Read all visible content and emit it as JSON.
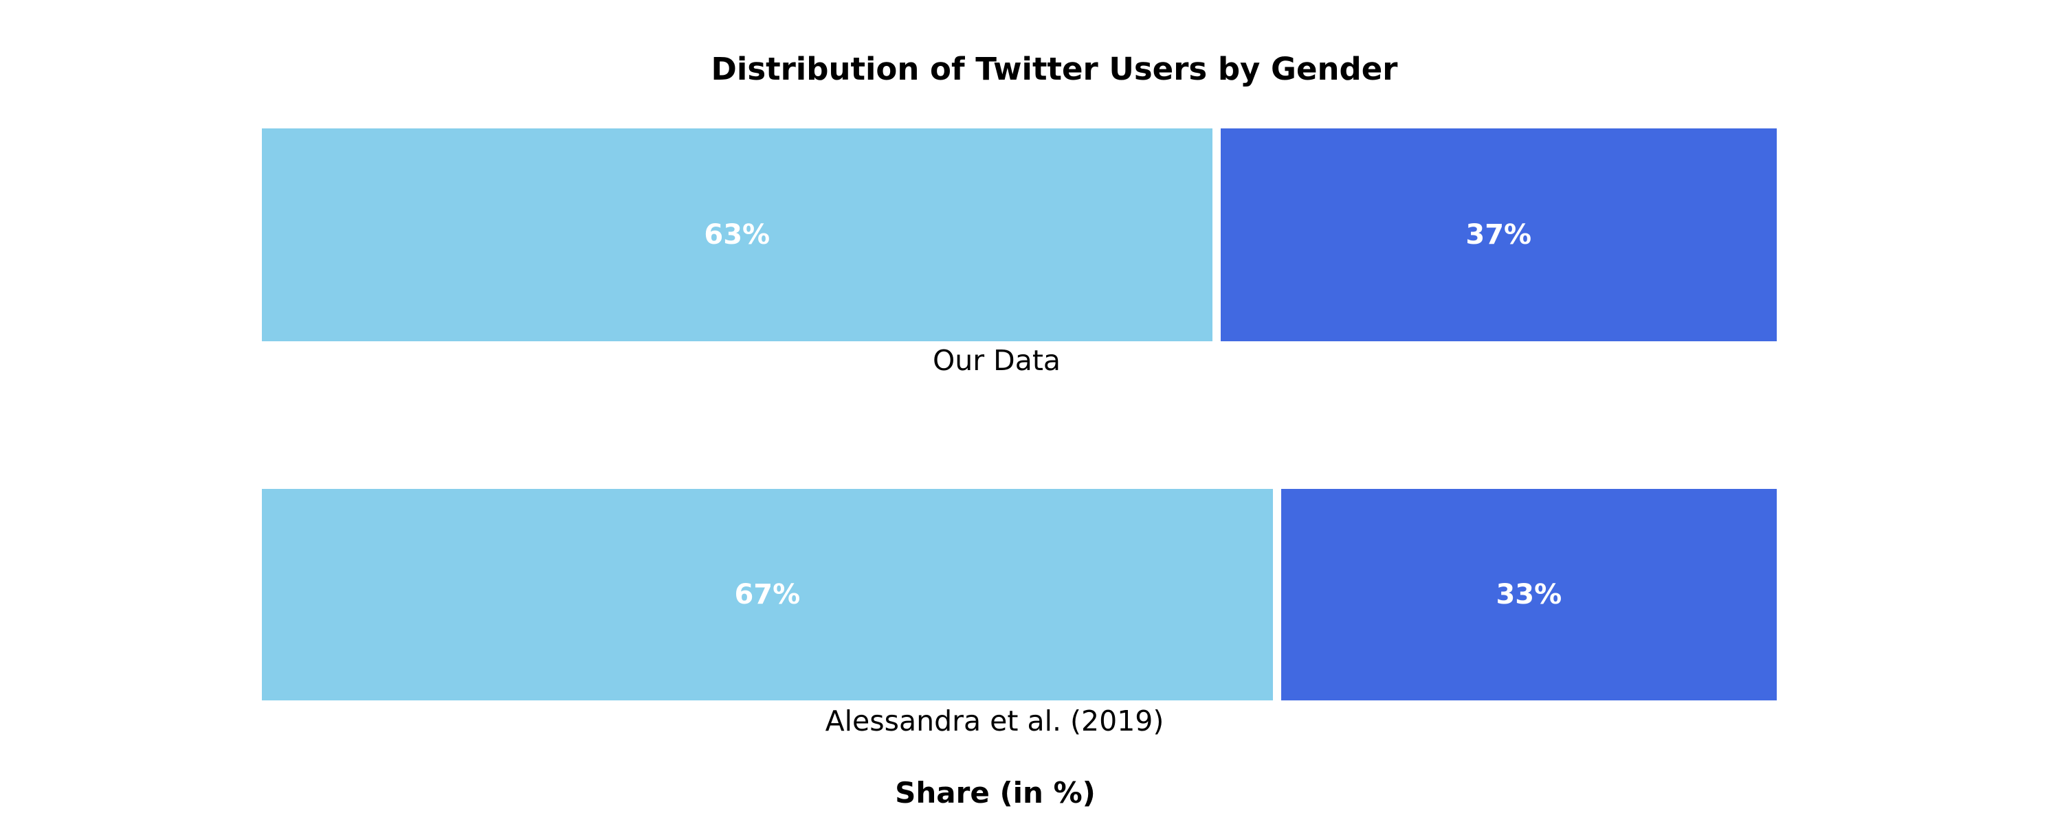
{
  "figure": {
    "background": "#ffffff",
    "text_color": "#000000"
  },
  "chart_data": {
    "type": "bar",
    "orientation": "horizontal_stacked",
    "title": "Distribution of Twitter Users by Gender",
    "xlabel": "Share (in %)",
    "categories": [
      "Our Data",
      "Alessandra et al. (2019)"
    ],
    "series": [
      {
        "color": "#87CEEB",
        "values": [
          63,
          67
        ]
      },
      {
        "color": "#4169E1",
        "values": [
          37,
          33
        ]
      }
    ],
    "bar_labels": [
      [
        "63%",
        "37%"
      ],
      [
        "67%",
        "33%"
      ]
    ],
    "value_label_color": "#ffffff",
    "xlim": [
      0,
      100
    ],
    "grid": false,
    "legend": "none",
    "axes_visible": false
  }
}
